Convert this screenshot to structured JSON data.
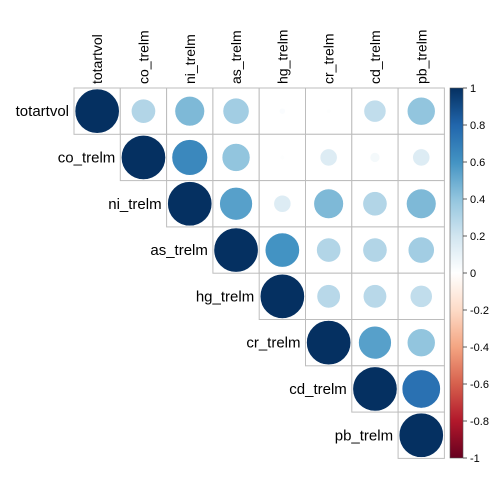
{
  "chart_data": {
    "type": "heatmap",
    "variables": [
      "totartvol",
      "co_trelm",
      "ni_trelm",
      "as_trelm",
      "hg_trelm",
      "cr_trelm",
      "cd_trelm",
      "pb_trelm"
    ],
    "matrix": [
      [
        1.0,
        0.3,
        0.45,
        0.35,
        0.02,
        0.01,
        0.25,
        0.4
      ],
      [
        0.3,
        1.0,
        0.65,
        0.4,
        0.01,
        0.15,
        0.05,
        0.15
      ],
      [
        0.45,
        0.65,
        1.0,
        0.55,
        0.15,
        0.45,
        0.3,
        0.45
      ],
      [
        0.35,
        0.4,
        0.55,
        1.0,
        0.6,
        0.3,
        0.3,
        0.35
      ],
      [
        0.02,
        0.01,
        0.15,
        0.6,
        1.0,
        0.28,
        0.28,
        0.25
      ],
      [
        0.01,
        0.15,
        0.45,
        0.3,
        0.28,
        1.0,
        0.55,
        0.4
      ],
      [
        0.25,
        0.05,
        0.3,
        0.3,
        0.28,
        0.55,
        1.0,
        0.75
      ],
      [
        0.4,
        0.15,
        0.45,
        0.35,
        0.25,
        0.4,
        0.75,
        1.0
      ]
    ],
    "triangle": "upper",
    "method": "circle",
    "colorbar": {
      "ticks": [
        1,
        0.8,
        0.6,
        0.4,
        0.2,
        0,
        -0.2,
        -0.4,
        -0.6,
        -0.8,
        -1
      ],
      "tick_labels": [
        "1",
        "0.8",
        "0.6",
        "0.4",
        "0.2",
        "0",
        "-0.2",
        "-0.4",
        "-0.6",
        "-0.8",
        "-1"
      ],
      "range": [
        -1,
        1
      ],
      "colors": [
        "#67001F",
        "#B2182B",
        "#D6604D",
        "#F4A582",
        "#FDDBC7",
        "#FFFFFF",
        "#D1E5F0",
        "#92C5DE",
        "#4393C3",
        "#2166AC",
        "#053061"
      ]
    }
  }
}
